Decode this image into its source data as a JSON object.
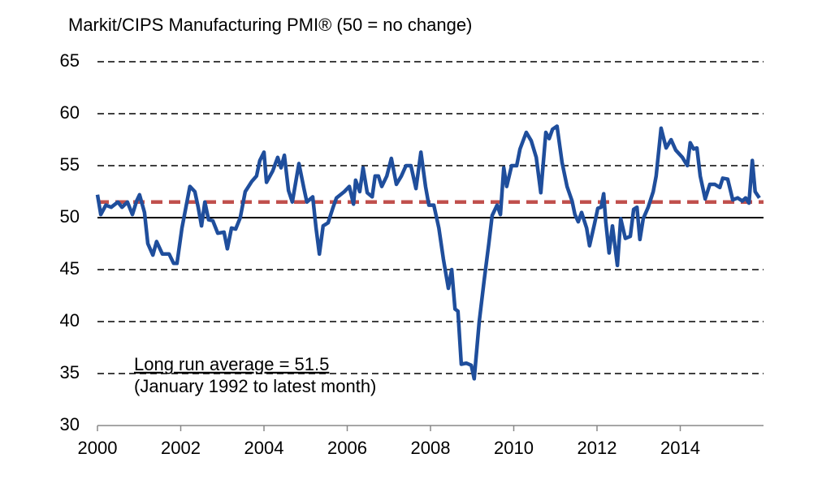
{
  "chart_data": {
    "type": "line",
    "title": "Markit/CIPS Manufacturing PMI® (50 = no change)",
    "annotation": [
      "Long run average = 51.5",
      "(January 1992 to latest month)"
    ],
    "average": 51.5,
    "average_color": "#c0504d",
    "baseline": 50,
    "xlim": [
      2000,
      2016
    ],
    "xticks": [
      2000,
      2002,
      2004,
      2006,
      2008,
      2010,
      2012,
      2014
    ],
    "ylim": [
      30,
      65
    ],
    "yticks": [
      30,
      35,
      40,
      45,
      50,
      55,
      60,
      65
    ],
    "grid": true,
    "x": [
      2000.0,
      2000.08,
      2000.2,
      2000.33,
      2000.49,
      2000.59,
      2000.72,
      2000.84,
      2000.94,
      2001.01,
      2001.13,
      2001.21,
      2001.33,
      2001.42,
      2001.56,
      2001.72,
      2001.83,
      2001.91,
      2002.03,
      2002.22,
      2002.34,
      2002.42,
      2002.5,
      2002.58,
      2002.67,
      2002.77,
      2002.89,
      2003.04,
      2003.12,
      2003.22,
      2003.32,
      2003.43,
      2003.55,
      2003.71,
      2003.82,
      2003.9,
      2004.0,
      2004.06,
      2004.21,
      2004.33,
      2004.41,
      2004.49,
      2004.59,
      2004.68,
      2004.84,
      2004.96,
      2005.03,
      2005.17,
      2005.25,
      2005.33,
      2005.42,
      2005.54,
      2005.66,
      2005.74,
      2005.93,
      2006.05,
      2006.15,
      2006.2,
      2006.3,
      2006.38,
      2006.48,
      2006.6,
      2006.67,
      2006.75,
      2006.83,
      2006.95,
      2007.06,
      2007.18,
      2007.3,
      2007.41,
      2007.53,
      2007.65,
      2007.77,
      2007.88,
      2007.96,
      2008.08,
      2008.2,
      2008.31,
      2008.43,
      2008.51,
      2008.59,
      2008.66,
      2008.74,
      2008.86,
      2008.98,
      2009.05,
      2009.17,
      2009.29,
      2009.4,
      2009.48,
      2009.6,
      2009.68,
      2009.76,
      2009.83,
      2009.95,
      2010.07,
      2010.15,
      2010.3,
      2010.42,
      2010.54,
      2010.65,
      2010.77,
      2010.85,
      2010.93,
      2011.04,
      2011.16,
      2011.28,
      2011.4,
      2011.47,
      2011.55,
      2011.63,
      2011.75,
      2011.82,
      2011.94,
      2012.02,
      2012.1,
      2012.16,
      2012.21,
      2012.29,
      2012.37,
      2012.49,
      2012.57,
      2012.68,
      2012.8,
      2012.88,
      2012.96,
      2013.03,
      2013.11,
      2013.23,
      2013.35,
      2013.42,
      2013.54,
      2013.66,
      2013.78,
      2013.89,
      2014.05,
      2014.17,
      2014.24,
      2014.32,
      2014.4,
      2014.48,
      2014.6,
      2014.71,
      2014.83,
      2014.95,
      2015.02,
      2015.14,
      2015.26,
      2015.38,
      2015.49,
      2015.57,
      2015.65,
      2015.73,
      2015.8,
      2015.9
    ],
    "series": [
      {
        "color": "#1f4e9c",
        "values": [
          52.2,
          50.3,
          51.2,
          51.0,
          51.5,
          51.0,
          51.5,
          50.3,
          51.6,
          52.2,
          50.5,
          47.5,
          46.4,
          47.7,
          46.5,
          46.5,
          45.6,
          45.6,
          49.0,
          53.0,
          52.5,
          51.0,
          49.2,
          51.5,
          49.8,
          49.7,
          48.5,
          48.6,
          47.0,
          49.0,
          48.9,
          50.0,
          52.5,
          53.5,
          54.0,
          55.5,
          56.3,
          53.4,
          54.5,
          55.8,
          54.8,
          56.0,
          52.6,
          51.5,
          55.2,
          52.8,
          51.5,
          52.0,
          49.0,
          46.5,
          49.2,
          49.5,
          51.0,
          51.9,
          52.5,
          53.0,
          51.3,
          53.6,
          52.5,
          54.8,
          52.4,
          52.0,
          54.0,
          54.0,
          53.0,
          54.0,
          55.7,
          53.2,
          54.0,
          55.0,
          55.0,
          52.8,
          56.3,
          53.0,
          51.2,
          51.2,
          49.0,
          46.0,
          43.2,
          45.0,
          41.2,
          41.0,
          35.9,
          36.0,
          35.8,
          34.5,
          40.0,
          44.0,
          47.5,
          50.2,
          51.2,
          50.3,
          54.8,
          53.0,
          55.0,
          55.0,
          56.6,
          58.2,
          57.4,
          55.8,
          52.4,
          58.2,
          57.6,
          58.5,
          58.8,
          55.3,
          53.0,
          51.6,
          50.3,
          49.6,
          50.5,
          49.0,
          47.3,
          49.4,
          50.9,
          51.0,
          52.3,
          49.6,
          46.6,
          49.2,
          45.4,
          49.9,
          48.0,
          48.2,
          50.8,
          51.0,
          47.9,
          49.9,
          51.0,
          52.5,
          54.0,
          58.6,
          56.7,
          57.5,
          56.5,
          55.8,
          55.0,
          57.2,
          56.6,
          56.7,
          54.0,
          51.8,
          53.2,
          53.2,
          52.9,
          53.8,
          53.7,
          51.7,
          51.9,
          51.6,
          51.9,
          51.4,
          55.5,
          52.5,
          51.9
        ]
      }
    ]
  }
}
